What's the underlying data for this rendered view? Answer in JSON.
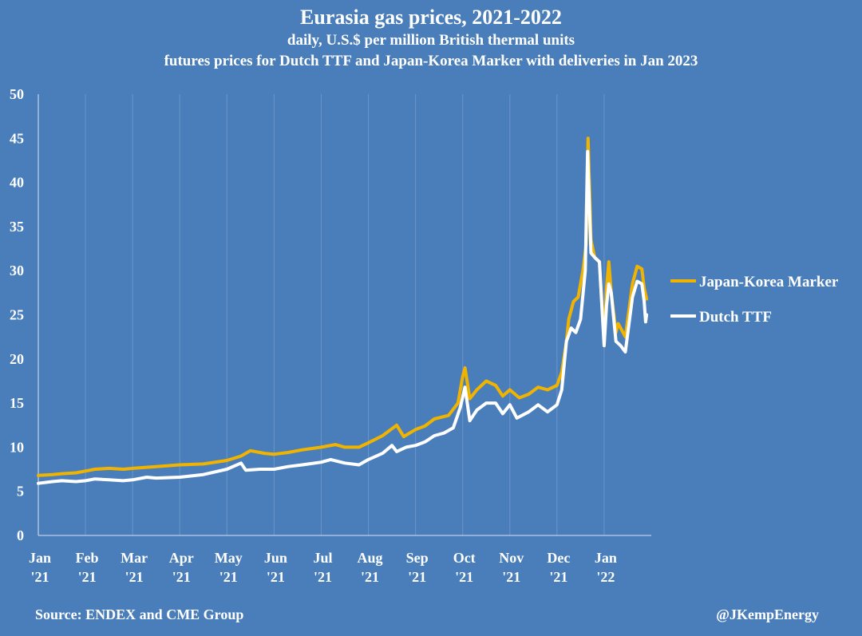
{
  "chart_data": {
    "type": "line",
    "title": "Eurasia gas prices, 2021-2022",
    "subtitle_1": "daily, U.S.$ per million British thermal units",
    "subtitle_2": "futures prices for Dutch TTF and Japan-Korea Marker with deliveries in Jan 2023",
    "ylim": [
      0,
      50
    ],
    "y_ticks": [
      0,
      5,
      10,
      15,
      20,
      25,
      30,
      35,
      40,
      45,
      50
    ],
    "x_range": [
      0,
      13
    ],
    "x_ticks": [
      {
        "line1": "Jan",
        "line2": "'21",
        "x": 0
      },
      {
        "line1": "Feb",
        "line2": "'21",
        "x": 1
      },
      {
        "line1": "Mar",
        "line2": "'21",
        "x": 2
      },
      {
        "line1": "Apr",
        "line2": "'21",
        "x": 3
      },
      {
        "line1": "May",
        "line2": "'21",
        "x": 4
      },
      {
        "line1": "Jun",
        "line2": "'21",
        "x": 5
      },
      {
        "line1": "Jul",
        "line2": "'21",
        "x": 6
      },
      {
        "line1": "Aug",
        "line2": "'21",
        "x": 7
      },
      {
        "line1": "Sep",
        "line2": "'21",
        "x": 8
      },
      {
        "line1": "Oct",
        "line2": "'21",
        "x": 9
      },
      {
        "line1": "Nov",
        "line2": "'21",
        "x": 10
      },
      {
        "line1": "Dec",
        "line2": "'21",
        "x": 11
      },
      {
        "line1": "Jan",
        "line2": "'22",
        "x": 12
      }
    ],
    "grid": "vertical",
    "legend_position": "right",
    "series": [
      {
        "name": "Japan-Korea Marker",
        "color": "#f0b400",
        "points": [
          [
            0.0,
            6.8
          ],
          [
            0.3,
            6.9
          ],
          [
            0.5,
            7.0
          ],
          [
            0.8,
            7.1
          ],
          [
            1.0,
            7.3
          ],
          [
            1.2,
            7.5
          ],
          [
            1.5,
            7.6
          ],
          [
            1.8,
            7.5
          ],
          [
            2.0,
            7.6
          ],
          [
            2.5,
            7.8
          ],
          [
            3.0,
            8.0
          ],
          [
            3.5,
            8.1
          ],
          [
            4.0,
            8.5
          ],
          [
            4.3,
            9.0
          ],
          [
            4.5,
            9.6
          ],
          [
            4.8,
            9.3
          ],
          [
            5.0,
            9.2
          ],
          [
            5.3,
            9.4
          ],
          [
            5.6,
            9.7
          ],
          [
            6.0,
            10.0
          ],
          [
            6.3,
            10.3
          ],
          [
            6.5,
            10.0
          ],
          [
            6.8,
            10.0
          ],
          [
            7.0,
            10.5
          ],
          [
            7.3,
            11.3
          ],
          [
            7.6,
            12.5
          ],
          [
            7.75,
            11.2
          ],
          [
            8.0,
            12.0
          ],
          [
            8.2,
            12.4
          ],
          [
            8.4,
            13.2
          ],
          [
            8.7,
            13.6
          ],
          [
            8.9,
            15.0
          ],
          [
            9.0,
            18.0
          ],
          [
            9.05,
            19.0
          ],
          [
            9.15,
            15.5
          ],
          [
            9.3,
            16.5
          ],
          [
            9.5,
            17.5
          ],
          [
            9.7,
            17.0
          ],
          [
            9.85,
            15.8
          ],
          [
            10.0,
            16.5
          ],
          [
            10.2,
            15.6
          ],
          [
            10.4,
            16.0
          ],
          [
            10.6,
            16.8
          ],
          [
            10.8,
            16.5
          ],
          [
            11.0,
            17.0
          ],
          [
            11.1,
            18.5
          ],
          [
            11.2,
            22.0
          ],
          [
            11.25,
            24.5
          ],
          [
            11.35,
            26.5
          ],
          [
            11.45,
            27.0
          ],
          [
            11.55,
            30.0
          ],
          [
            11.62,
            33.0
          ],
          [
            11.66,
            45.0
          ],
          [
            11.72,
            33.5
          ],
          [
            11.8,
            31.5
          ],
          [
            11.9,
            31.0
          ],
          [
            12.0,
            22.0
          ],
          [
            12.05,
            28.0
          ],
          [
            12.1,
            31.0
          ],
          [
            12.15,
            27.5
          ],
          [
            12.25,
            23.0
          ],
          [
            12.3,
            24.0
          ],
          [
            12.45,
            22.5
          ],
          [
            12.6,
            28.5
          ],
          [
            12.7,
            30.5
          ],
          [
            12.8,
            30.2
          ],
          [
            12.85,
            28.0
          ],
          [
            12.9,
            26.8
          ]
        ]
      },
      {
        "name": "Dutch TTF",
        "color": "#ffffff",
        "points": [
          [
            0.0,
            5.9
          ],
          [
            0.3,
            6.1
          ],
          [
            0.5,
            6.2
          ],
          [
            0.8,
            6.1
          ],
          [
            1.0,
            6.2
          ],
          [
            1.2,
            6.4
          ],
          [
            1.5,
            6.3
          ],
          [
            1.8,
            6.2
          ],
          [
            2.0,
            6.3
          ],
          [
            2.3,
            6.6
          ],
          [
            2.5,
            6.5
          ],
          [
            3.0,
            6.6
          ],
          [
            3.5,
            6.9
          ],
          [
            4.0,
            7.5
          ],
          [
            4.3,
            8.2
          ],
          [
            4.4,
            7.4
          ],
          [
            4.7,
            7.5
          ],
          [
            5.0,
            7.5
          ],
          [
            5.3,
            7.8
          ],
          [
            5.6,
            8.0
          ],
          [
            6.0,
            8.3
          ],
          [
            6.2,
            8.6
          ],
          [
            6.5,
            8.2
          ],
          [
            6.8,
            8.0
          ],
          [
            7.0,
            8.6
          ],
          [
            7.3,
            9.3
          ],
          [
            7.5,
            10.2
          ],
          [
            7.6,
            9.5
          ],
          [
            7.8,
            10.0
          ],
          [
            8.0,
            10.2
          ],
          [
            8.2,
            10.6
          ],
          [
            8.4,
            11.3
          ],
          [
            8.6,
            11.6
          ],
          [
            8.8,
            12.2
          ],
          [
            8.95,
            14.5
          ],
          [
            9.05,
            16.8
          ],
          [
            9.15,
            13.0
          ],
          [
            9.3,
            14.2
          ],
          [
            9.5,
            15.0
          ],
          [
            9.7,
            15.0
          ],
          [
            9.85,
            13.8
          ],
          [
            10.0,
            14.8
          ],
          [
            10.15,
            13.3
          ],
          [
            10.4,
            14.0
          ],
          [
            10.6,
            14.8
          ],
          [
            10.8,
            14.0
          ],
          [
            11.0,
            14.8
          ],
          [
            11.1,
            16.5
          ],
          [
            11.2,
            22.0
          ],
          [
            11.3,
            23.5
          ],
          [
            11.4,
            23.0
          ],
          [
            11.5,
            24.5
          ],
          [
            11.6,
            30.0
          ],
          [
            11.65,
            43.5
          ],
          [
            11.72,
            32.0
          ],
          [
            11.8,
            31.5
          ],
          [
            11.9,
            31.0
          ],
          [
            12.0,
            21.5
          ],
          [
            12.05,
            26.0
          ],
          [
            12.1,
            28.5
          ],
          [
            12.15,
            27.5
          ],
          [
            12.25,
            22.0
          ],
          [
            12.35,
            21.5
          ],
          [
            12.45,
            20.8
          ],
          [
            12.6,
            27.0
          ],
          [
            12.7,
            28.8
          ],
          [
            12.8,
            28.5
          ],
          [
            12.85,
            26.5
          ],
          [
            12.88,
            24.2
          ],
          [
            12.9,
            25.0
          ]
        ]
      }
    ]
  },
  "footer": {
    "source": "Source: ENDEX and CME Group",
    "credit": "@JKempEnergy"
  }
}
